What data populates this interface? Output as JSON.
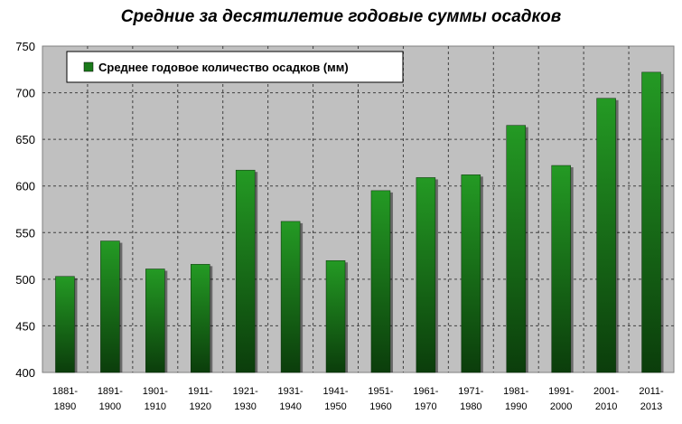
{
  "chart_data": {
    "type": "bar",
    "title": "Средние за десятилетие годовые суммы осадков",
    "xlabel": "",
    "ylabel": "",
    "ylim": [
      400,
      750
    ],
    "yticks": [
      400,
      450,
      500,
      550,
      600,
      650,
      700,
      750
    ],
    "grid": true,
    "legend_position": "top-left",
    "categories": [
      [
        "1881-",
        "1890"
      ],
      [
        "1891-",
        "1900"
      ],
      [
        "1901-",
        "1910"
      ],
      [
        "1911-",
        "1920"
      ],
      [
        "1921-",
        "1930"
      ],
      [
        "1931-",
        "1940"
      ],
      [
        "1941-",
        "1950"
      ],
      [
        "1951-",
        "1960"
      ],
      [
        "1961-",
        "1970"
      ],
      [
        "1971-",
        "1980"
      ],
      [
        "1981-",
        "1990"
      ],
      [
        "1991-",
        "2000"
      ],
      [
        "2001-",
        "2010"
      ],
      [
        "2011-",
        "2013"
      ]
    ],
    "series": [
      {
        "name": "Среднее годовое количество осадков (мм)",
        "color": "#1a7a1a",
        "values": [
          503,
          541,
          511,
          516,
          617,
          562,
          520,
          595,
          609,
          612,
          665,
          622,
          694,
          722
        ]
      }
    ]
  }
}
